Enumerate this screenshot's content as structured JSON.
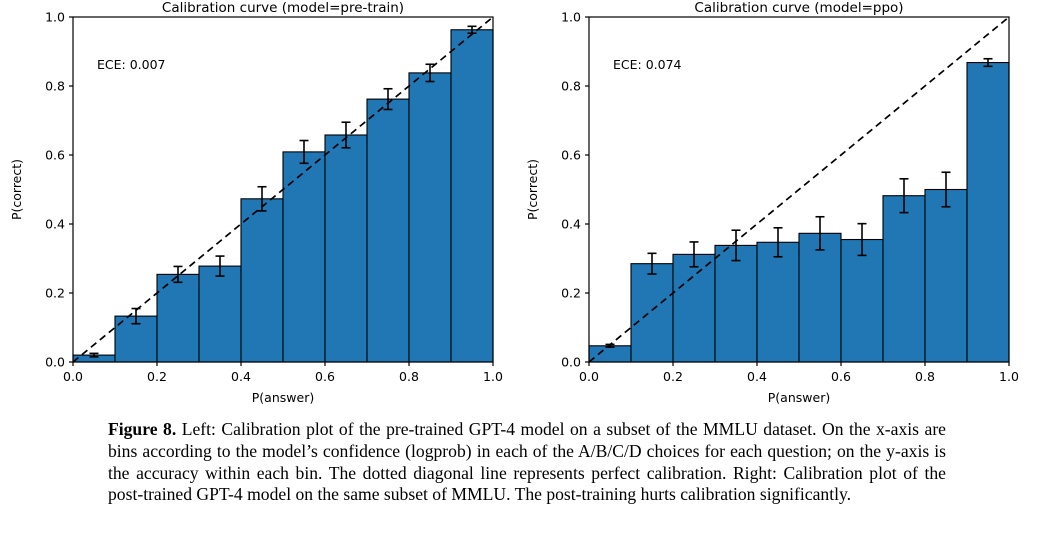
{
  "figure": {
    "background": "#ffffff"
  },
  "caption": {
    "label": "Figure 8.",
    "text": "Left: Calibration plot of the pre-trained GPT-4 model on a subset of the MMLU dataset. On the x-axis are bins according to the model’s confidence (logprob) in each of the A/B/C/D choices for each question; on the y-axis is the accuracy within each bin. The dotted diagonal line represents perfect calibration. Right: Calibration plot of the post-trained GPT-4 model on the same subset of MMLU. The post-training hurts calibration significantly."
  },
  "chart_data": [
    {
      "type": "bar",
      "title": "Calibration curve (model=pre-train)",
      "annotation": "ECE: 0.007",
      "xlabel": "P(answer)",
      "ylabel": "P(correct)",
      "xlim": [
        0.0,
        1.0
      ],
      "ylim": [
        0.0,
        1.0
      ],
      "xticks": [
        "0.0",
        "0.2",
        "0.4",
        "0.6",
        "0.8",
        "1.0"
      ],
      "yticks": [
        "0.0",
        "0.2",
        "0.4",
        "0.6",
        "0.8",
        "1.0"
      ],
      "bin_edges": [
        0.0,
        0.1,
        0.2,
        0.3,
        0.4,
        0.5,
        0.6,
        0.7,
        0.8,
        0.9,
        1.0
      ],
      "values": [
        0.02,
        0.133,
        0.254,
        0.278,
        0.473,
        0.609,
        0.658,
        0.762,
        0.838,
        0.963
      ],
      "errors": [
        0.005,
        0.022,
        0.023,
        0.029,
        0.035,
        0.033,
        0.037,
        0.03,
        0.025,
        0.01
      ],
      "diagonal": {
        "from": [
          0,
          0
        ],
        "to": [
          1,
          1
        ],
        "style": "dashed",
        "color": "#000000",
        "meaning": "perfect calibration"
      },
      "bar_color": "#2077b4",
      "bar_edge_color": "#000000",
      "error_color": "#000000",
      "grid": false
    },
    {
      "type": "bar",
      "title": "Calibration curve (model=ppo)",
      "annotation": "ECE: 0.074",
      "xlabel": "P(answer)",
      "ylabel": "P(correct)",
      "xlim": [
        0.0,
        1.0
      ],
      "ylim": [
        0.0,
        1.0
      ],
      "xticks": [
        "0.0",
        "0.2",
        "0.4",
        "0.6",
        "0.8",
        "1.0"
      ],
      "yticks": [
        "0.0",
        "0.2",
        "0.4",
        "0.6",
        "0.8",
        "1.0"
      ],
      "bin_edges": [
        0.0,
        0.1,
        0.2,
        0.3,
        0.4,
        0.5,
        0.6,
        0.7,
        0.8,
        0.9,
        1.0
      ],
      "values": [
        0.047,
        0.285,
        0.312,
        0.338,
        0.347,
        0.373,
        0.355,
        0.482,
        0.5,
        0.868
      ],
      "errors": [
        0.004,
        0.03,
        0.036,
        0.044,
        0.042,
        0.048,
        0.046,
        0.049,
        0.05,
        0.011
      ],
      "diagonal": {
        "from": [
          0,
          0
        ],
        "to": [
          1,
          1
        ],
        "style": "dashed",
        "color": "#000000",
        "meaning": "perfect calibration"
      },
      "bar_color": "#2077b4",
      "bar_edge_color": "#000000",
      "error_color": "#000000",
      "grid": false
    }
  ]
}
